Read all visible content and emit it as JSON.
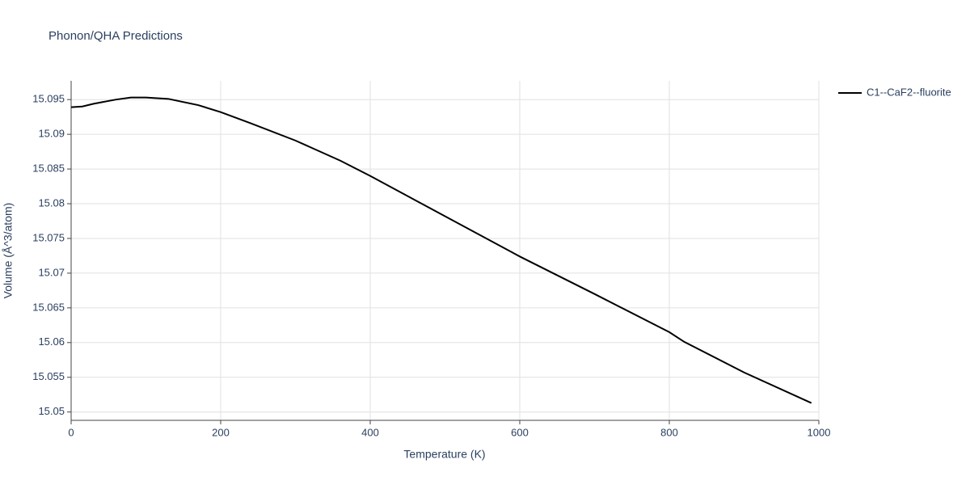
{
  "chart_data": {
    "type": "line",
    "title": "Phonon/QHA Predictions",
    "x_label": "Temperature (K)",
    "y_label": "Volume (Å^3/atom)",
    "x": [
      0,
      15,
      30,
      60,
      80,
      100,
      130,
      170,
      200,
      240,
      300,
      360,
      400,
      500,
      600,
      700,
      800,
      820,
      900,
      990
    ],
    "series": [
      {
        "name": "C1--CaF2--fluorite",
        "color": "#000000",
        "values": [
          15.0939,
          15.094,
          15.0944,
          15.095,
          15.0953,
          15.0953,
          15.0951,
          15.0942,
          15.0932,
          15.0916,
          15.0891,
          15.0862,
          15.084,
          15.0782,
          15.0724,
          15.067,
          15.0615,
          15.0601,
          15.0557,
          15.0513
        ]
      }
    ],
    "xlim": [
      0,
      1000
    ],
    "xticks": [
      0,
      200,
      400,
      600,
      800,
      1000
    ],
    "ylim": [
      15.0488,
      15.0977
    ],
    "yticks": [
      15.05,
      15.055,
      15.06,
      15.065,
      15.07,
      15.075,
      15.08,
      15.085,
      15.09,
      15.095
    ],
    "grid": true,
    "legend": "right"
  }
}
